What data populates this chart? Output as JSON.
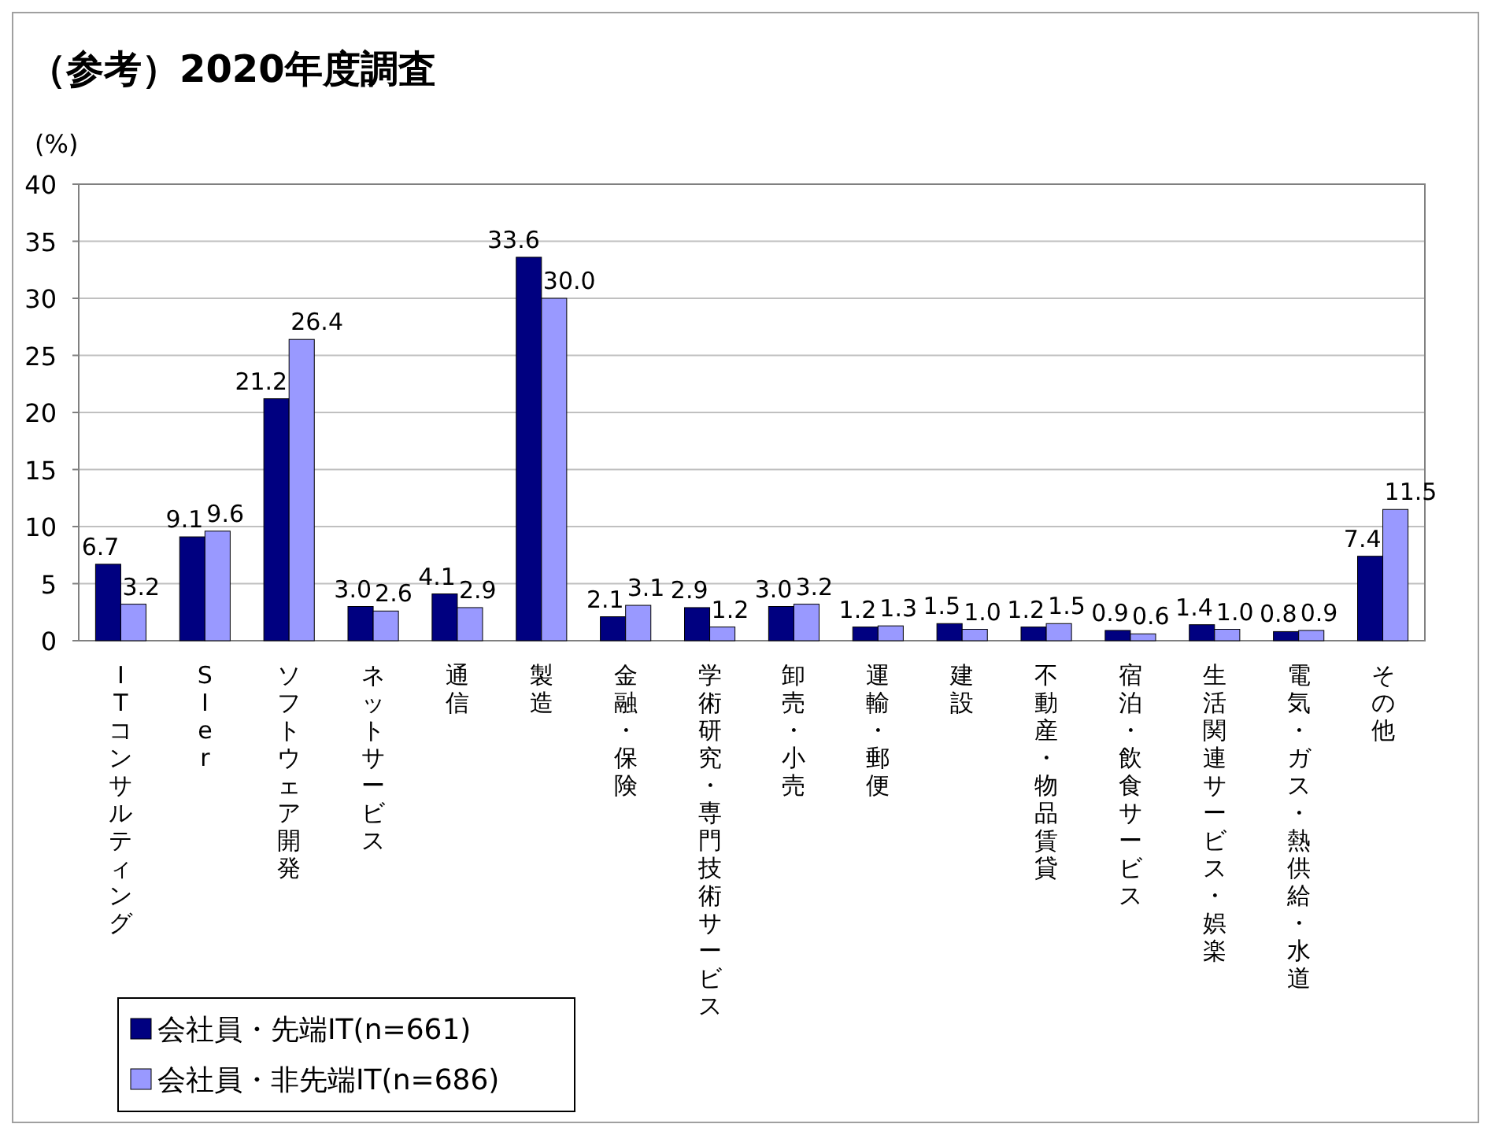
{
  "chart_data": {
    "type": "bar",
    "title": "（参考）2020年度調査",
    "ylabel": "(%)",
    "categories": [
      "ITコンサルティング",
      "SIer",
      "ソフトウェア開発",
      "ネットサービス",
      "通信",
      "製造",
      "金融・保険",
      "学術研究・専門技術サービス",
      "卸売・小売",
      "運輸・郵便",
      "建設",
      "不動産・物品賃貸",
      "宿泊・飲食サービス",
      "生活関連サービス・娯楽",
      "電気・ガス・熱供給・水道",
      "その他"
    ],
    "series": [
      {
        "name": "会社員・先端IT(n=661)",
        "color": "#000080",
        "values": [
          6.7,
          9.1,
          21.2,
          3.0,
          4.1,
          33.6,
          2.1,
          2.9,
          3.0,
          1.2,
          1.5,
          1.2,
          0.9,
          1.4,
          0.8,
          7.4
        ],
        "value_labels": [
          "6.7",
          "9.1",
          "21.2",
          "3.0",
          "4.1",
          "33.6",
          "2.1",
          "2.9",
          "3.0",
          "1.2",
          "1.5",
          "1.2",
          "0.9",
          "1.4",
          "0.8",
          "7.4"
        ]
      },
      {
        "name": "会社員・非先端IT(n=686)",
        "color": "#9999ff",
        "values": [
          3.2,
          9.6,
          26.4,
          2.6,
          2.9,
          30.0,
          3.1,
          1.2,
          3.2,
          1.3,
          1.0,
          1.5,
          0.6,
          1.0,
          0.9,
          11.5
        ],
        "value_labels": [
          "3.2",
          "9.6",
          "26.4",
          "2.6",
          "2.9",
          "30.0",
          "3.1",
          "1.2",
          "3.2",
          "1.3",
          "1.0",
          "1.5",
          "0.6",
          "1.0",
          "0.9",
          "11.5"
        ]
      }
    ],
    "ylim": [
      0,
      40
    ],
    "yticks": [
      0,
      5,
      10,
      15,
      20,
      25,
      30,
      35,
      40
    ],
    "grid": "y",
    "legend": "bottom left"
  }
}
